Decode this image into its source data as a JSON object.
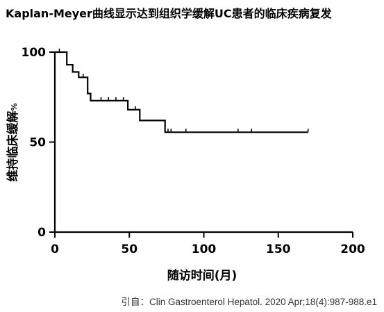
{
  "chart_data": {
    "type": "line",
    "title": "Kaplan-Meyer曲线显示达到组织学缓解UC患者的临床疾病复发",
    "xlabel": "随访时间(月)",
    "ylabel": "维持临床缓解",
    "ylabel_unit": "%",
    "xlim": [
      0,
      200
    ],
    "ylim": [
      0,
      100
    ],
    "x_ticks": [
      "0",
      "50",
      "100",
      "150",
      "200"
    ],
    "y_ticks": [
      "0",
      "50",
      "100"
    ],
    "grid": false,
    "legend": "none",
    "series": [
      {
        "step_points": [
          [
            0,
            100
          ],
          [
            8,
            100
          ],
          [
            8,
            93
          ],
          [
            12,
            93
          ],
          [
            12,
            89
          ],
          [
            16,
            89
          ],
          [
            16,
            86
          ],
          [
            22,
            86
          ],
          [
            22,
            77
          ],
          [
            24,
            77
          ],
          [
            24,
            73
          ],
          [
            49,
            73
          ],
          [
            49,
            68
          ],
          [
            57,
            68
          ],
          [
            57,
            62
          ],
          [
            74,
            62
          ],
          [
            74,
            55.5
          ],
          [
            170,
            55.5
          ]
        ],
        "censored": [
          [
            3,
            100
          ],
          [
            19,
            86
          ],
          [
            31,
            73
          ],
          [
            36,
            73
          ],
          [
            41,
            73
          ],
          [
            46,
            73
          ],
          [
            54,
            68
          ],
          [
            76,
            55.5
          ],
          [
            78,
            55.5
          ],
          [
            88,
            55.5
          ],
          [
            123,
            55.5
          ],
          [
            132,
            55.5
          ],
          [
            170,
            55.5
          ]
        ],
        "color": "#000000"
      }
    ]
  },
  "source_note": "引自：Clin Gastroenterol Hepatol. 2020 Apr;18(4):987-988.e1"
}
